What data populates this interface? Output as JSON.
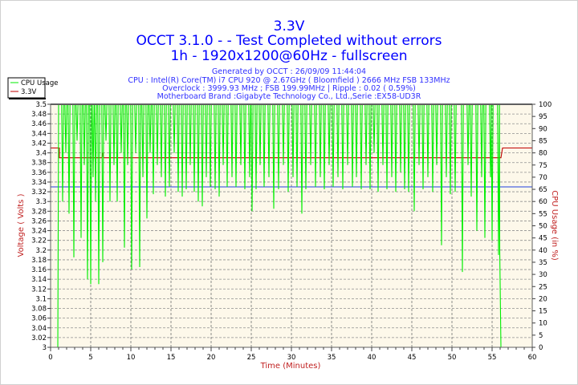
{
  "chart_data": {
    "type": "line",
    "title": "3.3V",
    "subtitle_lines": [
      "OCCT 3.1.0 -  - Test Completed without errors",
      "1h - 1920x1200@60Hz - fullscreen"
    ],
    "info_lines": [
      "Generated by OCCT : 26/09/09 11:44:04",
      "CPU : Intel(R) Core(TM) i7 CPU 920 @ 2.67GHz ( Bloomfield ) 2666 MHz FSB 133MHz",
      "Overclock : 3999.93 MHz ; FSB 199.99MHz | Ripple : 0.02 ( 0.59%)",
      "Motherboard Brand :Gigabyte Technology Co., Ltd.,Serie :EX58-UD3R"
    ],
    "xlabel": "Time (Minutes)",
    "ylabel": "Voltage ( Volts )",
    "y2label": "CPU Usage (in %)",
    "xlim": [
      0,
      60
    ],
    "ylim": [
      3.0,
      3.5
    ],
    "y2lim": [
      0,
      100
    ],
    "x_ticks": [
      0,
      5,
      10,
      15,
      20,
      25,
      30,
      35,
      40,
      45,
      50,
      55,
      60
    ],
    "y_ticks": [
      "3",
      "3.02",
      "3.04",
      "3.06",
      "3.08",
      "3.1",
      "3.12",
      "3.14",
      "3.16",
      "3.18",
      "3.2",
      "3.22",
      "3.24",
      "3.26",
      "3.28",
      "3.3",
      "3.32",
      "3.34",
      "3.36",
      "3.38",
      "3.4",
      "3.42",
      "3.44",
      "3.46",
      "3.48",
      "3.5"
    ],
    "y2_ticks": [
      0,
      5,
      10,
      15,
      20,
      25,
      30,
      35,
      40,
      45,
      50,
      55,
      60,
      65,
      70,
      75,
      80,
      85,
      90,
      95,
      100
    ],
    "grid": true,
    "legend_placement": "top-left",
    "series": [
      {
        "name": "CPU Usage",
        "axis": "right",
        "color": "#00ee00",
        "start": [
          [
            0,
            0
          ],
          [
            0.9,
            0
          ],
          [
            1.0,
            100
          ]
        ],
        "dips_time_min": [
          [
            1.5,
            60
          ],
          [
            1.9,
            80
          ],
          [
            2.3,
            55
          ],
          [
            2.9,
            37
          ],
          [
            3.3,
            85
          ],
          [
            3.8,
            45
          ],
          [
            4.2,
            75
          ],
          [
            4.6,
            28
          ],
          [
            5.0,
            26
          ],
          [
            5.3,
            70
          ],
          [
            5.6,
            60
          ],
          [
            6.0,
            26
          ],
          [
            6.5,
            35
          ],
          [
            6.9,
            85
          ],
          [
            7.4,
            60
          ],
          [
            7.9,
            75
          ],
          [
            8.3,
            60
          ],
          [
            8.8,
            80
          ],
          [
            9.2,
            41
          ],
          [
            9.6,
            75
          ],
          [
            10.1,
            32
          ],
          [
            10.6,
            80
          ],
          [
            11.1,
            33
          ],
          [
            11.5,
            70
          ],
          [
            12.0,
            53
          ],
          [
            12.4,
            80
          ],
          [
            12.8,
            63
          ],
          [
            13.3,
            75
          ],
          [
            13.8,
            70
          ],
          [
            14.3,
            62
          ],
          [
            14.8,
            66
          ],
          [
            15.4,
            80
          ],
          [
            15.9,
            64
          ],
          [
            16.4,
            62
          ],
          [
            16.9,
            65
          ],
          [
            17.4,
            75
          ],
          [
            17.9,
            64
          ],
          [
            18.4,
            60
          ],
          [
            18.9,
            58
          ],
          [
            19.4,
            70
          ],
          [
            19.9,
            66
          ],
          [
            20.5,
            65
          ],
          [
            21.0,
            62
          ],
          [
            21.5,
            75
          ],
          [
            22.0,
            66
          ],
          [
            22.6,
            70
          ],
          [
            23.1,
            66
          ],
          [
            23.7,
            75
          ],
          [
            24.2,
            65
          ],
          [
            24.8,
            70
          ],
          [
            25.1,
            56
          ],
          [
            25.6,
            65
          ],
          [
            26.1,
            75
          ],
          [
            26.6,
            66
          ],
          [
            27.2,
            70
          ],
          [
            27.8,
            57
          ],
          [
            28.4,
            65
          ],
          [
            29.0,
            75
          ],
          [
            29.6,
            64
          ],
          [
            30.2,
            70
          ],
          [
            30.7,
            66
          ],
          [
            31.3,
            55
          ],
          [
            31.8,
            65
          ],
          [
            32.4,
            75
          ],
          [
            33.0,
            66
          ],
          [
            33.6,
            70
          ],
          [
            34.1,
            65
          ],
          [
            34.7,
            75
          ],
          [
            35.2,
            66
          ],
          [
            35.8,
            70
          ],
          [
            36.4,
            65
          ],
          [
            37.0,
            75
          ],
          [
            37.6,
            66
          ],
          [
            38.1,
            70
          ],
          [
            38.7,
            65
          ],
          [
            39.3,
            75
          ],
          [
            39.8,
            65
          ],
          [
            40.3,
            80
          ],
          [
            40.8,
            64
          ],
          [
            41.4,
            75
          ],
          [
            41.9,
            65
          ],
          [
            42.5,
            70
          ],
          [
            43.0,
            64
          ],
          [
            43.6,
            72
          ],
          [
            44.1,
            65
          ],
          [
            44.6,
            64
          ],
          [
            45.3,
            56
          ],
          [
            45.9,
            75
          ],
          [
            46.4,
            65
          ],
          [
            47.0,
            70
          ],
          [
            47.6,
            64
          ],
          [
            48.1,
            75
          ],
          [
            48.7,
            42
          ],
          [
            49.3,
            70
          ],
          [
            49.8,
            63
          ],
          [
            50.4,
            64
          ],
          [
            51.3,
            31
          ],
          [
            52.0,
            75
          ],
          [
            52.4,
            62
          ],
          [
            53.1,
            48
          ],
          [
            53.7,
            70
          ],
          [
            54.1,
            45
          ],
          [
            54.8,
            70
          ],
          [
            55.0,
            44
          ],
          [
            55.8,
            38
          ]
        ],
        "end": [
          [
            55.95,
            40
          ],
          [
            56.1,
            0
          ],
          [
            60,
            0
          ]
        ]
      },
      {
        "name": "3.3V",
        "axis": "left",
        "color": "#c00000",
        "points": [
          [
            0,
            3.41
          ],
          [
            1.1,
            3.41
          ],
          [
            1.1,
            3.39
          ],
          [
            6.4,
            3.39
          ],
          [
            6.5,
            3.4
          ],
          [
            6.6,
            3.39
          ],
          [
            56.1,
            3.39
          ],
          [
            56.3,
            3.41
          ],
          [
            60,
            3.41
          ]
        ]
      },
      {
        "axis": "left",
        "color": "#2040e0",
        "points": [
          [
            0,
            3.33
          ],
          [
            60,
            3.33
          ]
        ]
      }
    ],
    "colors": {
      "title": "#0000ff",
      "axis_label": "#c02020",
      "plot_bg": "#fdf8ea"
    }
  }
}
